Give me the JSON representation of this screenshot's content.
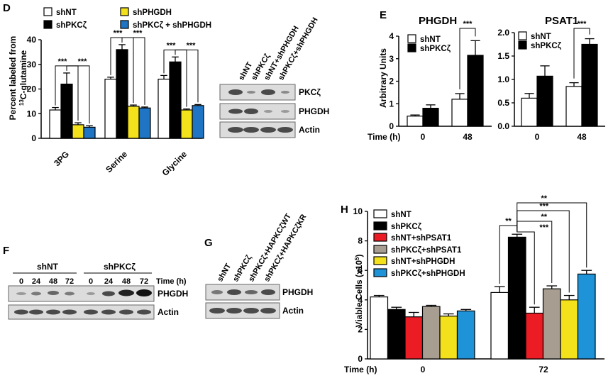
{
  "colors": {
    "shNT": "#ffffff",
    "shPKCz": "#000000",
    "shPHGDH": "#f3e21b",
    "shPKCz_shPHGDH": "#1f74c4",
    "shNT_shPSAT1": "#ec1c24",
    "shPKCz_shPSAT1": "#a79e91",
    "h_shPKCz_shPHGDH": "#1e93d8"
  },
  "chart_data": [
    {
      "panel": "D",
      "type": "bar",
      "ylabel_line1": "Percent  labeled from",
      "ylabel_line2": "13C-glutamine",
      "ylim": [
        0,
        40
      ],
      "yticks": [
        "0",
        "10",
        "20",
        "30",
        "40"
      ],
      "categories": [
        "3PG",
        "Serine",
        "Glycine"
      ],
      "series": [
        {
          "name": "shNT",
          "values": [
            11.5,
            24,
            24
          ],
          "errors": [
            1,
            0.8,
            1.5
          ]
        },
        {
          "name": "shPKCζ",
          "values": [
            22,
            36,
            31
          ],
          "errors": [
            4.5,
            2,
            2
          ]
        },
        {
          "name": "shPHGDH",
          "values": [
            5.5,
            13,
            11.5
          ],
          "errors": [
            0.8,
            0.5,
            0.4
          ]
        },
        {
          "name": "shPKCζ + shPHGDH",
          "values": [
            4.5,
            12.3,
            13.3
          ],
          "errors": [
            0.6,
            0.4,
            0.4
          ]
        }
      ],
      "significance": [
        "***",
        "***",
        "***",
        "***",
        "***",
        "***"
      ]
    },
    {
      "panel": "E",
      "type": "bar",
      "title": "PHGDH",
      "ylabel": "Arbitrary Units",
      "ylim": [
        0,
        4
      ],
      "yticks": [
        "0",
        "1",
        "2",
        "3",
        "4"
      ],
      "categories": [
        "0",
        "48"
      ],
      "xlabel": "Time (h)",
      "series": [
        {
          "name": "shNT",
          "values": [
            0.45,
            1.2
          ],
          "errors": [
            0.05,
            0.25
          ]
        },
        {
          "name": "shPKCζ",
          "values": [
            0.8,
            3.15
          ],
          "errors": [
            0.15,
            0.65
          ]
        }
      ],
      "significance": [
        "***"
      ]
    },
    {
      "panel": "E",
      "type": "bar",
      "title": "PSAT1",
      "ylim": [
        0,
        2
      ],
      "yticks": [
        "0.0",
        "0.5",
        "1.0",
        "1.5",
        "2.0"
      ],
      "categories": [
        "0",
        "48"
      ],
      "series": [
        {
          "name": "shNT",
          "values": [
            0.6,
            0.85
          ],
          "errors": [
            0.1,
            0.08
          ]
        },
        {
          "name": "shPKCζ",
          "values": [
            1.07,
            1.75
          ],
          "errors": [
            0.22,
            0.12
          ]
        }
      ],
      "significance": [
        "***"
      ]
    },
    {
      "panel": "H",
      "type": "bar",
      "ylabel": "Viable Cells (x105)",
      "ylim": [
        0,
        10
      ],
      "yticks": [
        "0",
        "2",
        "4",
        "6",
        "8",
        "10"
      ],
      "categories": [
        "0",
        "72"
      ],
      "xlabel": "Time (h)",
      "series": [
        {
          "name": "shNT",
          "values": [
            4.2,
            4.5
          ],
          "errors": [
            0.1,
            0.4
          ]
        },
        {
          "name": "shPKCζ",
          "values": [
            3.35,
            8.25
          ],
          "errors": [
            0.15,
            0.2
          ]
        },
        {
          "name": "shNT+shPSAT1",
          "values": [
            2.85,
            3.1
          ],
          "errors": [
            0.3,
            0.4
          ]
        },
        {
          "name": "shPKCζ+shPSAT1",
          "values": [
            3.55,
            4.75
          ],
          "errors": [
            0.08,
            0.2
          ]
        },
        {
          "name": "shNT+shPHGDH",
          "values": [
            2.9,
            4.0
          ],
          "errors": [
            0.15,
            0.3
          ]
        },
        {
          "name": "shPKCζ+shPHGDH",
          "values": [
            3.25,
            5.75
          ],
          "errors": [
            0.1,
            0.25
          ]
        }
      ],
      "significance": [
        "**",
        "***",
        "**",
        "***",
        "**"
      ]
    }
  ],
  "blots": {
    "D": {
      "lanes": [
        "shNT",
        "shPKCζ",
        "shNT+shPHGDH",
        "shPKCζ+shPHGDH"
      ],
      "rows": [
        "PKCζ",
        "PHGDH",
        "Actin"
      ]
    },
    "F": {
      "group1": "shNT",
      "group2": "shPKCζ",
      "time_label": "Time (h)",
      "times": [
        "0",
        "24",
        "48",
        "72",
        "0",
        "24",
        "48",
        "72"
      ],
      "rows": [
        "PHGDH",
        "Actin"
      ]
    },
    "G": {
      "lanes": [
        "shNT",
        "shPKCζ",
        "shPKCζ+HAPKCζWT",
        "shPKCζ+HAPKCζKR"
      ],
      "rows": [
        "PHGDH",
        "Actin"
      ]
    }
  },
  "panel_labels": [
    "D",
    "E",
    "F",
    "G",
    "H"
  ]
}
